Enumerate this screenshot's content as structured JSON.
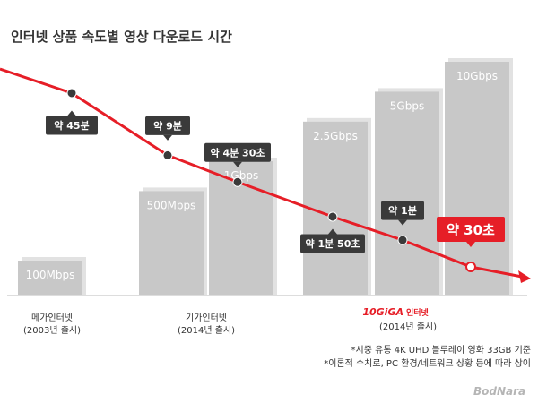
{
  "chart_data": {
    "type": "bar",
    "title": "인터넷 상품 속도별 영상 다운로드 시간",
    "categories": [
      "100Mbps",
      "500Mbps",
      "1Gbps",
      "2.5Gbps",
      "5Gbps",
      "10Gbps"
    ],
    "values": [
      100,
      500,
      1000,
      2500,
      5000,
      10000
    ],
    "unit": "Mbps",
    "download_time_labels": [
      "약 45분",
      "약 9분",
      "약 4분 30초",
      "약 1분 50초",
      "약 1분",
      "약 30초"
    ],
    "download_time_seconds": [
      2700,
      540,
      270,
      110,
      60,
      30
    ],
    "groups": [
      {
        "label_lines": [
          "메가인터넷",
          "(2003년 출시)"
        ]
      },
      {
        "label_lines": [
          "기가인터넷",
          "(2014년 출시)"
        ]
      },
      {
        "logo_number": "10GiGA",
        "logo_text": "인터넷",
        "label_lines": [
          "(2014년 출시)"
        ]
      }
    ],
    "footnotes": [
      "*시중 유통 4K UHD 블루레이 영화 33GB 기준",
      "*이론적 수치로, PC 환경/네트워크 상황 등에 따라 상이"
    ],
    "colors": {
      "bar": "#c8c8c8",
      "bar_side": "#e2e2e2",
      "line": "#e61e27",
      "callout": "#3a3a3a",
      "callout_highlight": "#e61e27"
    }
  },
  "watermark": "BodNara"
}
